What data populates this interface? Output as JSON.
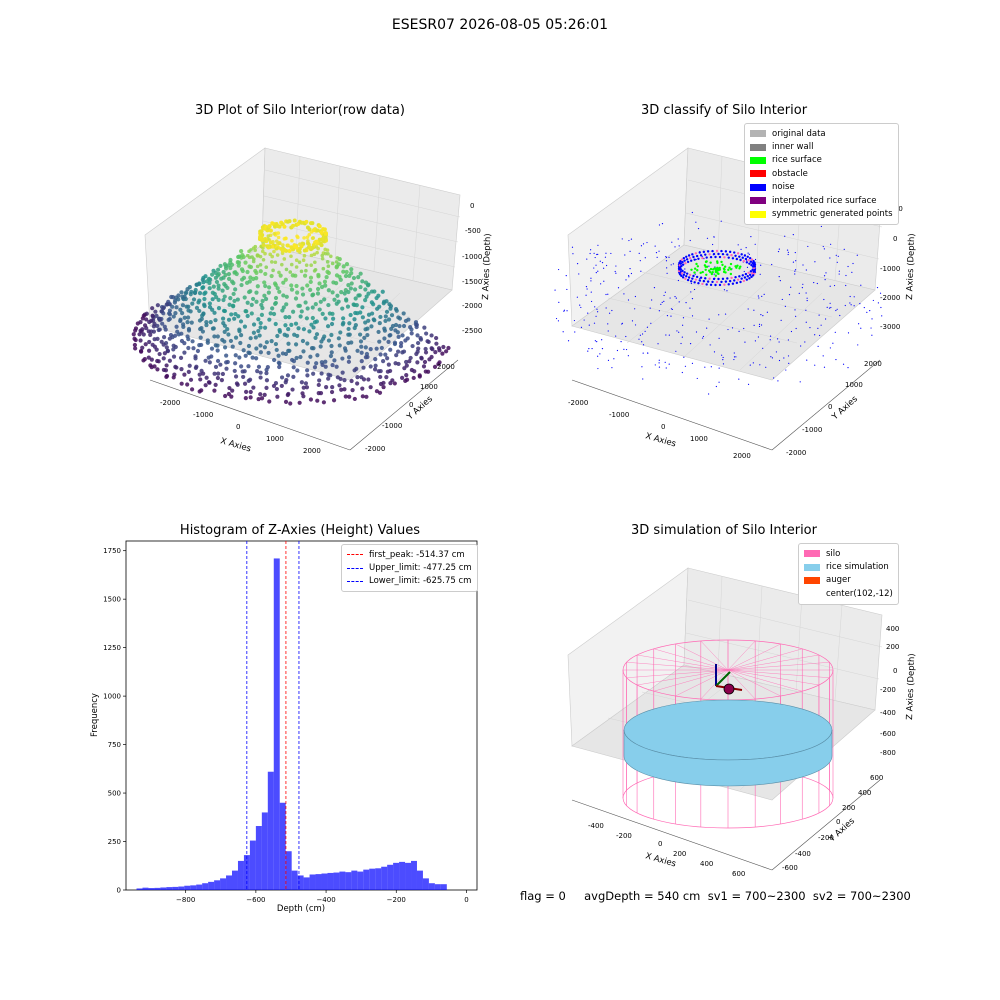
{
  "suptitle": "ESESR07 2026-08-05 05:26:01",
  "panels": {
    "raw": {
      "title": "3D Plot of Silo Interior(row data)",
      "xlabel": "X Axies",
      "ylabel": "Y Axies",
      "zlabel": "Z Axies (Depth)",
      "xticks": [
        "-2000",
        "-1000",
        "0",
        "1000",
        "2000"
      ],
      "yticks": [
        "2000",
        "1000",
        "0",
        "-1000",
        "-2000"
      ],
      "zticks": [
        "0",
        "-500",
        "-1000",
        "-1500",
        "-2000",
        "-2500"
      ]
    },
    "classify": {
      "title": "3D classify of Silo Interior",
      "xlabel": "X Axies",
      "ylabel": "Y Axies",
      "zlabel": "Z Axies (Depth)",
      "xticks": [
        "-2000",
        "-1000",
        "0",
        "1000",
        "2000"
      ],
      "yticks": [
        "2000",
        "1000",
        "0",
        "-1000",
        "-2000"
      ],
      "zticks": [
        "1000",
        "0",
        "-1000",
        "-2000",
        "-3000"
      ],
      "legend": [
        {
          "label": "original data",
          "color": "#b3b3b3"
        },
        {
          "label": "inner wall",
          "color": "#808080"
        },
        {
          "label": "rice surface",
          "color": "#00ff00"
        },
        {
          "label": "obstacle",
          "color": "#ff0000"
        },
        {
          "label": "noise",
          "color": "#0000ff"
        },
        {
          "label": "interpolated rice surface",
          "color": "#800080"
        },
        {
          "label": "symmetric generated points",
          "color": "#ffff00"
        }
      ]
    },
    "simulation": {
      "title": "3D simulation of Silo Interior",
      "xlabel": "X Axies",
      "ylabel": "Y Axies",
      "zlabel": "Z Axies (Depth)",
      "xticks": [
        "-400",
        "-200",
        "0",
        "200",
        "400",
        "600"
      ],
      "yticks": [
        "600",
        "400",
        "200",
        "0",
        "-200",
        "-400",
        "-600"
      ],
      "zticks": [
        "400",
        "200",
        "0",
        "-200",
        "-400",
        "-600",
        "-800"
      ],
      "legend": [
        {
          "label": "silo",
          "color": "#ff69b4"
        },
        {
          "label": "rice simulation",
          "color": "#87ceeb"
        },
        {
          "label": "auger",
          "color": "#ff4500"
        },
        {
          "label": "center(102,-12)",
          "color": ""
        }
      ],
      "silo_color": "#ff69b4",
      "rice_color": "#87ceeb"
    }
  },
  "status_line": "flag = 0     avgDepth = 540 cm  sv1 = 700~2300  sv2 = 700~2300",
  "chart_data": {
    "type": "bar",
    "title": "Histogram of Z-Axies (Height) Values",
    "xlabel": "Depth (cm)",
    "ylabel": "Frequency",
    "xlim": [
      -970,
      30
    ],
    "ylim": [
      0,
      1800
    ],
    "xticks": [
      -800,
      -600,
      -400,
      -200,
      0
    ],
    "yticks": [
      0,
      250,
      500,
      750,
      1000,
      1250,
      1500,
      1750
    ],
    "bar_color": "#0000ff",
    "bin_width": 17,
    "bin_starts": [
      -940,
      -923,
      -906,
      -889,
      -872,
      -855,
      -838,
      -821,
      -804,
      -787,
      -770,
      -753,
      -736,
      -719,
      -702,
      -685,
      -668,
      -651,
      -634,
      -617,
      -600,
      -583,
      -566,
      -549,
      -532,
      -515,
      -498,
      -481,
      -464,
      -447,
      -430,
      -413,
      -396,
      -379,
      -362,
      -345,
      -328,
      -311,
      -294,
      -277,
      -260,
      -243,
      -226,
      -209,
      -192,
      -175,
      -158,
      -141,
      -124,
      -107,
      -90,
      -73,
      -56,
      -39,
      -22
    ],
    "values": [
      8,
      12,
      10,
      11,
      13,
      15,
      16,
      18,
      22,
      24,
      28,
      35,
      42,
      50,
      60,
      75,
      100,
      150,
      180,
      255,
      330,
      400,
      610,
      1710,
      450,
      200,
      100,
      75,
      65,
      80,
      82,
      85,
      88,
      90,
      95,
      92,
      100,
      95,
      105,
      110,
      112,
      120,
      130,
      140,
      145,
      140,
      150,
      100,
      60,
      35,
      30,
      30,
      0,
      0,
      0
    ],
    "lines": [
      {
        "name": "first_peak: -514.37 cm",
        "x": -514.37,
        "color": "#ff0000"
      },
      {
        "name": "Upper_limit: -477.25 cm",
        "x": -477.25,
        "color": "#0000ff"
      },
      {
        "name": "Lower_limit: -625.75 cm",
        "x": -625.75,
        "color": "#0000ff"
      }
    ]
  }
}
